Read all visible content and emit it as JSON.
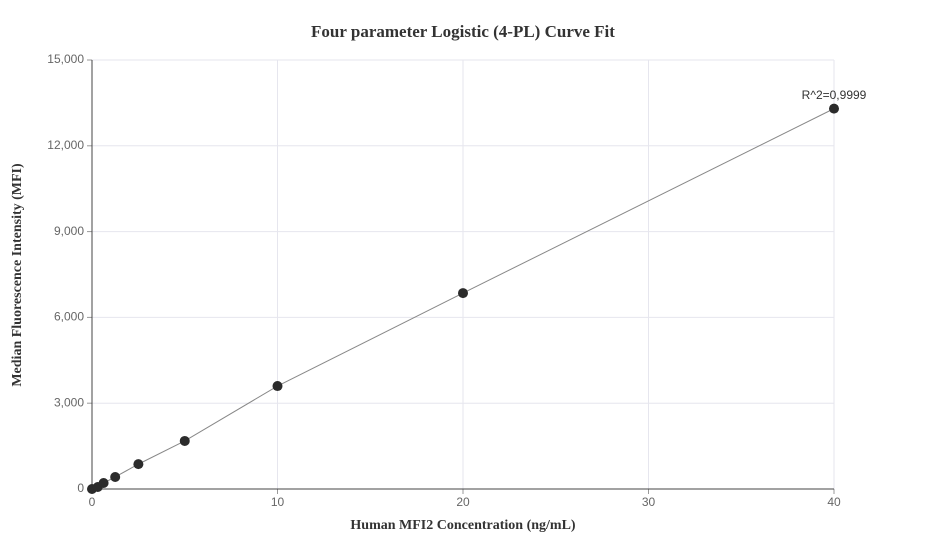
{
  "chart_data": {
    "type": "scatter",
    "title": "Four parameter Logistic (4-PL) Curve Fit",
    "x_label": "Human MFI2 Concentration (ng/mL)",
    "y_label": "Median Fluorescence Intensity (MFI)",
    "annotation": "R^2=0,9999",
    "x": [
      0,
      0.3125,
      0.625,
      1.25,
      2.5,
      5,
      10,
      20,
      40
    ],
    "series": [
      {
        "color": "#2b2b2b",
        "line_color": "#888888",
        "values": [
          0,
          70,
          210,
          420,
          870,
          1680,
          3600,
          6850,
          13300
        ]
      }
    ],
    "xlim": [
      0,
      40
    ],
    "xticks": [
      0,
      10,
      20,
      30,
      40
    ],
    "ylim": [
      0,
      15000
    ],
    "yticks": [
      0,
      {
        "value": 3000,
        "label": "3,000"
      },
      {
        "value": 6000,
        "label": "6,000"
      },
      {
        "value": 9000,
        "label": "9,000"
      },
      {
        "value": 12000,
        "label": "12,000"
      },
      {
        "value": 15000,
        "label": "15,000"
      }
    ],
    "grid": true
  }
}
